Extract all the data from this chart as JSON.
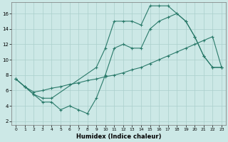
{
  "xlabel": "Humidex (Indice chaleur)",
  "background_color": "#cce8e6",
  "grid_color": "#aacfcc",
  "line_color": "#2a7a6a",
  "xlim": [
    -0.5,
    23.5
  ],
  "ylim": [
    1.5,
    17.5
  ],
  "xticks": [
    0,
    1,
    2,
    3,
    4,
    5,
    6,
    7,
    8,
    9,
    10,
    11,
    12,
    13,
    14,
    15,
    16,
    17,
    18,
    19,
    20,
    21,
    22,
    23
  ],
  "yticks": [
    2,
    4,
    6,
    8,
    10,
    12,
    14,
    16
  ],
  "line1_x": [
    0,
    1,
    2,
    3,
    4,
    9,
    10,
    11,
    12,
    13,
    14,
    15,
    16,
    17,
    18,
    19,
    20,
    21,
    22,
    23
  ],
  "line1_y": [
    7.5,
    6.5,
    5.5,
    5.0,
    5.0,
    9.0,
    11.5,
    15.0,
    15.0,
    15.0,
    14.5,
    17.0,
    17.0,
    17.0,
    16.0,
    15.0,
    13.0,
    10.5,
    9.0,
    9.0
  ],
  "line2_x": [
    0,
    1,
    2,
    3,
    4,
    5,
    6,
    7,
    8,
    9,
    10,
    11,
    12,
    13,
    14,
    15,
    16,
    17,
    18,
    19,
    20,
    21,
    22,
    23
  ],
  "line2_y": [
    7.5,
    6.5,
    5.8,
    6.0,
    6.3,
    6.5,
    6.8,
    7.0,
    7.3,
    7.5,
    7.8,
    8.0,
    8.3,
    8.7,
    9.0,
    9.5,
    10.0,
    10.5,
    11.0,
    11.5,
    12.0,
    12.5,
    13.0,
    9.0
  ],
  "line3_x": [
    0,
    1,
    2,
    3,
    4,
    5,
    6,
    7,
    8,
    9,
    10,
    11,
    12,
    13,
    14,
    15,
    16,
    17,
    18,
    19,
    20,
    21,
    22,
    23
  ],
  "line3_y": [
    7.5,
    6.5,
    5.5,
    4.5,
    4.5,
    3.5,
    4.0,
    3.5,
    3.0,
    5.0,
    8.0,
    11.5,
    12.0,
    11.5,
    11.5,
    14.0,
    15.0,
    15.5,
    16.0,
    15.0,
    13.0,
    10.5,
    9.0,
    9.0
  ]
}
